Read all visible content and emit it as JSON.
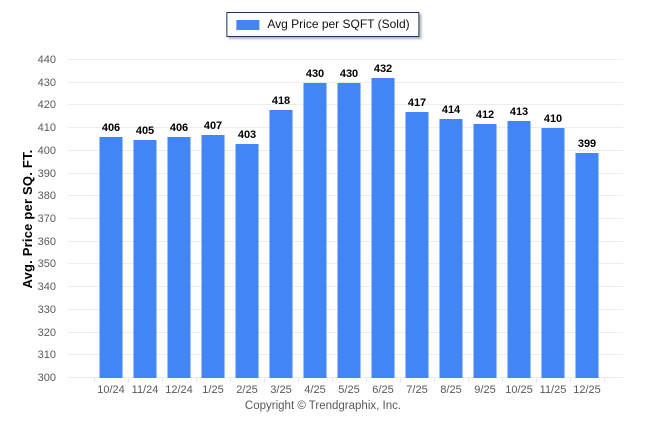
{
  "chart_data": {
    "type": "bar",
    "title": "",
    "legend": "Avg Price per SQFT (Sold)",
    "legend_position": "top-center",
    "xlabel": "",
    "ylabel": "Avg. Price per SQ. FT.",
    "categories": [
      "10/24",
      "11/24",
      "12/24",
      "1/25",
      "2/25",
      "3/25",
      "4/25",
      "5/25",
      "6/25",
      "7/25",
      "8/25",
      "9/25",
      "10/25",
      "11/25",
      "12/25"
    ],
    "values": [
      406,
      405,
      406,
      407,
      403,
      418,
      430,
      430,
      432,
      417,
      414,
      412,
      413,
      410,
      399
    ],
    "ylim": [
      300,
      440
    ],
    "yticks": [
      300,
      310,
      320,
      330,
      340,
      350,
      360,
      370,
      380,
      390,
      400,
      410,
      420,
      430,
      440
    ],
    "grid": "horizontal",
    "bar_color": "#4285F4",
    "gridline_color": "#ECECEC",
    "tick_label_color": "#595959",
    "legend_border_color": "#17375E"
  },
  "footer": {
    "copyright": "Copyright © Trendgraphix, Inc."
  }
}
